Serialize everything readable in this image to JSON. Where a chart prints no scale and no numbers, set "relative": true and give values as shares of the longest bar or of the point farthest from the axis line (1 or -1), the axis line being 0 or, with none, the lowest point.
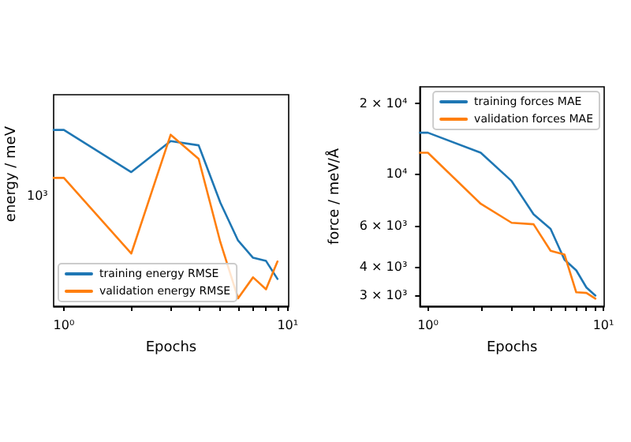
{
  "chart_data": [
    {
      "type": "line",
      "xlabel": "Epochs",
      "ylabel": "energy / meV",
      "log": "x",
      "grid": false,
      "legend": "bottom left",
      "marker": "none",
      "line_style": "solid",
      "x": [
        0.9,
        1,
        2,
        3,
        4,
        5,
        6,
        7,
        8,
        9
      ],
      "xlim": [
        0.9,
        10.1
      ],
      "xticks": [
        {
          "value": 1,
          "label": "10⁰"
        },
        {
          "value": 2,
          "label": null
        },
        {
          "value": 3,
          "label": null
        },
        {
          "value": 4,
          "label": null
        },
        {
          "value": 5,
          "label": null
        },
        {
          "value": 6,
          "label": null
        },
        {
          "value": 7,
          "label": null
        },
        {
          "value": 8,
          "label": null
        },
        {
          "value": 9,
          "label": null
        },
        {
          "value": 10,
          "label": "10¹"
        }
      ],
      "relative": true,
      "annotations": [
        "10³"
      ],
      "series": [
        {
          "name": "training energy RMSE",
          "color": "#1f77b4",
          "values": [
            1,
            1,
            0.761,
            0.937,
            0.913,
            0.588,
            0.373,
            0.275,
            0.257,
            0.155
          ]
        },
        {
          "name": "validation energy RMSE",
          "color": "#ff7f0e",
          "values": [
            0.728,
            0.728,
            0.299,
            0.973,
            0.836,
            0.364,
            0.045,
            0.164,
            0.096,
            0.254
          ]
        }
      ]
    },
    {
      "type": "line",
      "xlabel": "Epochs",
      "ylabel": "force / meV/Å",
      "log": "xy",
      "grid": false,
      "legend": "top right",
      "marker": "none",
      "line_style": "solid",
      "x": [
        0.9,
        1,
        2,
        3,
        4,
        5,
        6,
        7,
        8,
        9
      ],
      "xlim": [
        0.9,
        10.1
      ],
      "xticks": [
        {
          "value": 1,
          "label": "10⁰"
        },
        {
          "value": 2,
          "label": null
        },
        {
          "value": 3,
          "label": null
        },
        {
          "value": 4,
          "label": null
        },
        {
          "value": 5,
          "label": null
        },
        {
          "value": 6,
          "label": null
        },
        {
          "value": 7,
          "label": null
        },
        {
          "value": 8,
          "label": null
        },
        {
          "value": 9,
          "label": null
        },
        {
          "value": 10,
          "label": "10¹"
        }
      ],
      "ylim": [
        2700,
        23600
      ],
      "yticks": [
        {
          "value": 3000,
          "label": "3 × 10³"
        },
        {
          "value": 4000,
          "label": "4 × 10³"
        },
        {
          "value": 6000,
          "label": "6 × 10³"
        },
        {
          "value": 10000,
          "label": "10⁴"
        },
        {
          "value": 20000,
          "label": "2 × 10⁴"
        }
      ],
      "series": [
        {
          "name": "training forces MAE",
          "color": "#1f77b4",
          "values": [
            15000,
            15000,
            12300,
            9300,
            6700,
            5800,
            4280,
            3850,
            3250,
            3000
          ]
        },
        {
          "name": "validation forces MAE",
          "color": "#ff7f0e",
          "values": [
            12300,
            12300,
            7430,
            6160,
            6070,
            4670,
            4500,
            3100,
            3080,
            2910
          ]
        }
      ]
    }
  ]
}
